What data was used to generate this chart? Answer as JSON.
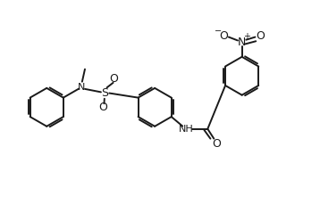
{
  "bg_color": "#ffffff",
  "line_color": "#1a1a1a",
  "line_width": 1.4,
  "figsize": [
    3.58,
    2.29
  ],
  "dpi": 100,
  "xlim": [
    0,
    9.0
  ],
  "ylim": [
    0,
    5.8
  ]
}
